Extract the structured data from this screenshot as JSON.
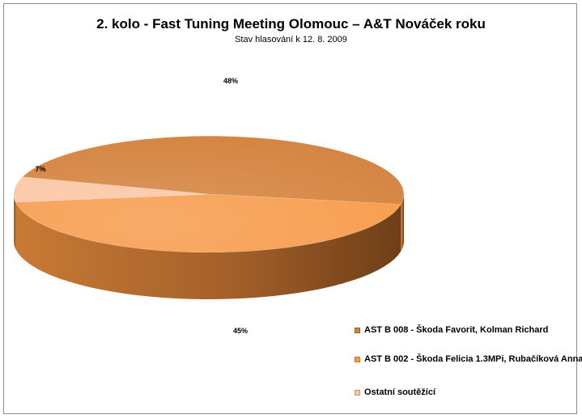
{
  "chart_data": {
    "type": "pie",
    "title": "2. kolo - Fast Tuning Meeting Olomouc – A&T Nováček roku",
    "subtitle": "Stav hlasování k 12. 8. 2009",
    "slices": [
      {
        "label": "AST B 008 - Škoda Favorit, Kolman Richard",
        "value": 48,
        "data_label": "48%",
        "color": "#d4823d"
      },
      {
        "label": "AST B 002 - Škoda Felicia 1.3MPi, Rubačíková Anna",
        "value": 45,
        "data_label": "45%",
        "color": "#f79a49"
      },
      {
        "label": "Ostatní soutěžící",
        "value": 7,
        "data_label": "7%",
        "color": "#fbc6a4"
      }
    ],
    "legend_position": "right-bottom",
    "style": "3d"
  }
}
